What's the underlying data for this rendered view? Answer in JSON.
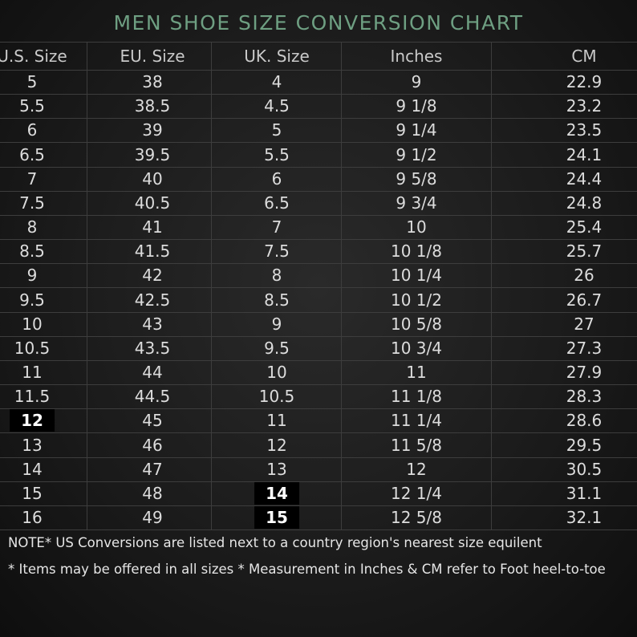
{
  "title": "MEN SHOE SIZE CONVERSION CHART",
  "table": {
    "headers": [
      "U.S. Size",
      "EU. Size",
      "UK. Size",
      "Inches",
      "CM"
    ],
    "rows": [
      [
        "5",
        "38",
        "4",
        "9",
        "22.9"
      ],
      [
        "5.5",
        "38.5",
        "4.5",
        "9 1/8",
        "23.2"
      ],
      [
        "6",
        "39",
        "5",
        "9 1/4",
        "23.5"
      ],
      [
        "6.5",
        "39.5",
        "5.5",
        "9 1/2",
        "24.1"
      ],
      [
        "7",
        "40",
        "6",
        "9 5/8",
        "24.4"
      ],
      [
        "7.5",
        "40.5",
        "6.5",
        "9 3/4",
        "24.8"
      ],
      [
        "8",
        "41",
        "7",
        "10",
        "25.4"
      ],
      [
        "8.5",
        "41.5",
        "7.5",
        "10 1/8",
        "25.7"
      ],
      [
        "9",
        "42",
        "8",
        "10 1/4",
        "26"
      ],
      [
        "9.5",
        "42.5",
        "8.5",
        "10 1/2",
        "26.7"
      ],
      [
        "10",
        "43",
        "9",
        "10 5/8",
        "27"
      ],
      [
        "10.5",
        "43.5",
        "9.5",
        "10 3/4",
        "27.3"
      ],
      [
        "11",
        "44",
        "10",
        "11",
        "27.9"
      ],
      [
        "11.5",
        "44.5",
        "10.5",
        "11 1/8",
        "28.3"
      ],
      [
        "12",
        "45",
        "11",
        "11 1/4",
        "28.6"
      ],
      [
        "13",
        "46",
        "12",
        "11 5/8",
        "29.5"
      ],
      [
        "14",
        "47",
        "13",
        "12",
        "30.5"
      ],
      [
        "15",
        "48",
        "14",
        "12 1/4",
        "31.1"
      ],
      [
        "16",
        "49",
        "15",
        "12 5/8",
        "32.1"
      ]
    ]
  },
  "notes": [
    "NOTE* US Conversions are listed next to a country region's nearest size equilent",
    "* Items may be offered in all sizes * Measurement in Inches & CM refer to Foot heel-to-toe"
  ]
}
